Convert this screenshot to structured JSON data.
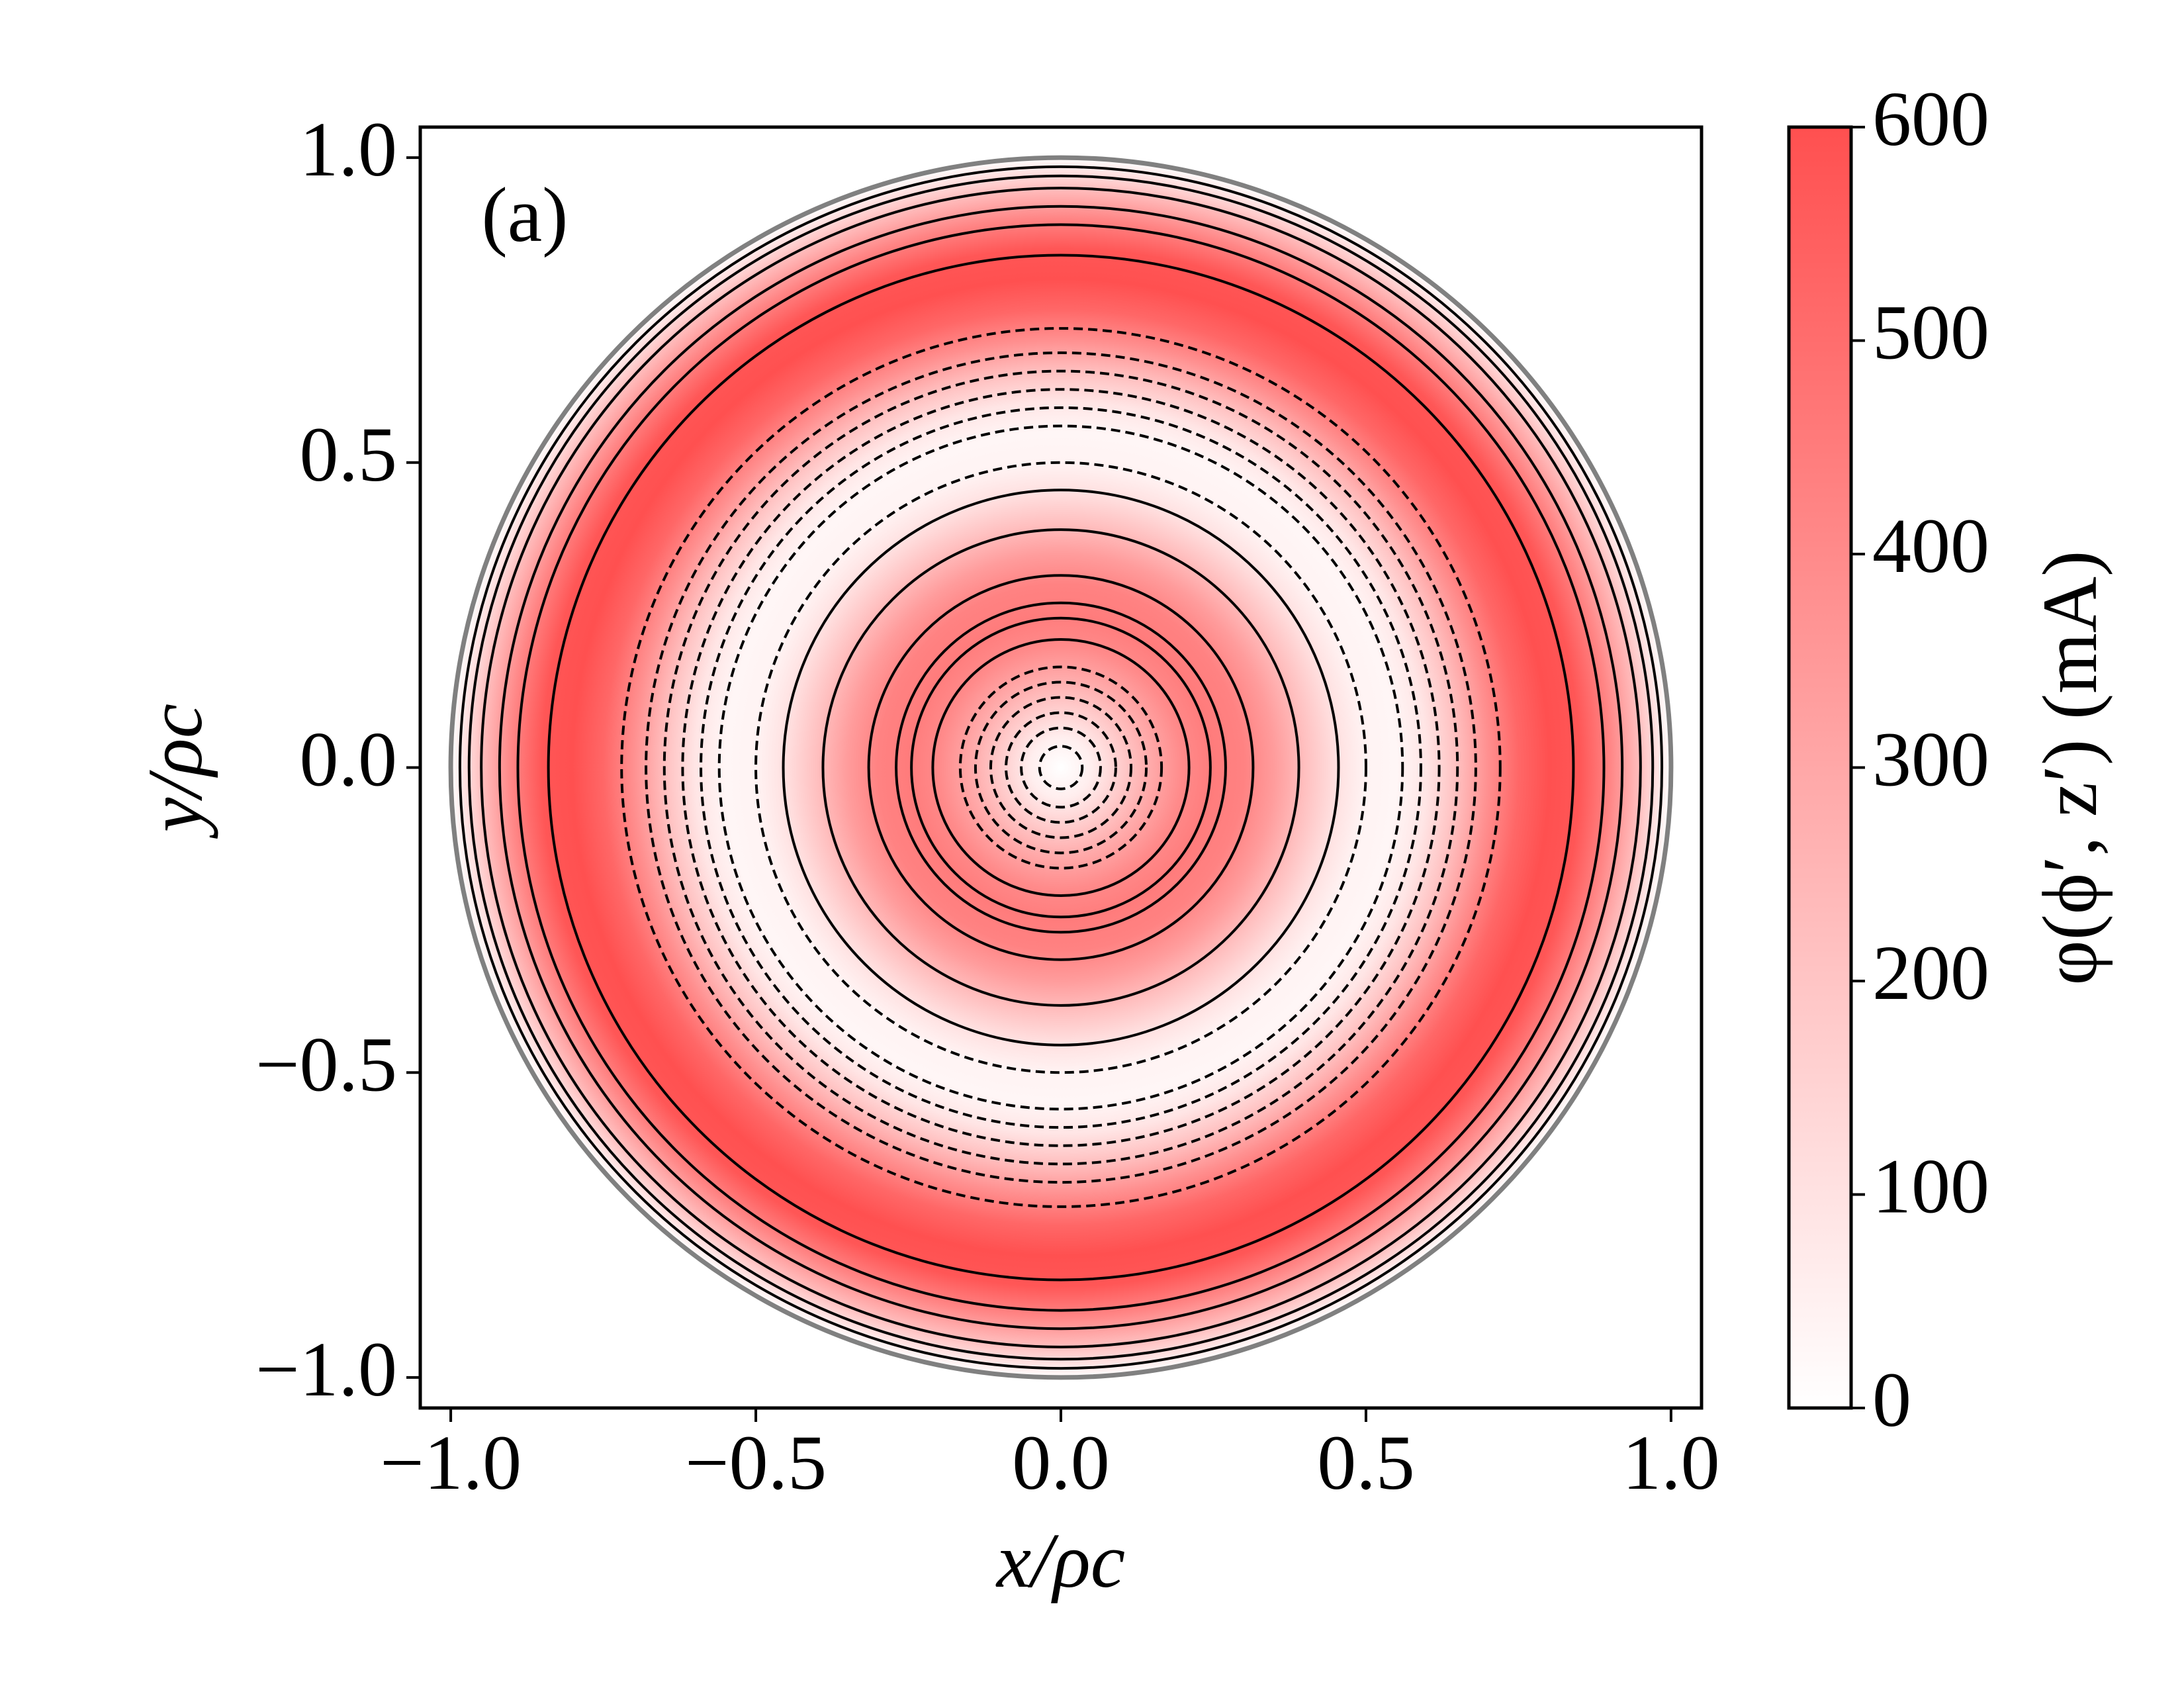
{
  "chart_data": {
    "type": "contour",
    "annotation": "(a)",
    "xlabel": "x/ρc",
    "ylabel": "y/ρc",
    "colorbar_label": "φ(ϕ′, z′) (mA)",
    "xlim": [
      -1.05,
      1.05
    ],
    "ylim": [
      -1.05,
      1.05
    ],
    "xticks": [
      {
        "value": -1,
        "label": "−1.0"
      },
      {
        "value": -0.5,
        "label": "−0.5"
      },
      {
        "value": 0,
        "label": "0.0"
      },
      {
        "value": 0.5,
        "label": "0.5"
      },
      {
        "value": 1,
        "label": "1.0"
      }
    ],
    "yticks": [
      {
        "value": -1,
        "label": "−1.0"
      },
      {
        "value": -0.5,
        "label": "−0.5"
      },
      {
        "value": 0,
        "label": "0.0"
      },
      {
        "value": 0.5,
        "label": "0.5"
      },
      {
        "value": 1,
        "label": "1.0"
      }
    ],
    "clim": [
      0,
      600
    ],
    "cticks": [
      0,
      100,
      200,
      300,
      400,
      500,
      600
    ],
    "cmap": [
      "#ffffff",
      "#ff5050"
    ],
    "profile": {
      "r": [
        0,
        0.05,
        0.1,
        0.15,
        0.2,
        0.25,
        0.3,
        0.35,
        0.4,
        0.45,
        0.5,
        0.55,
        0.6,
        0.65,
        0.7,
        0.75,
        0.8,
        0.85,
        0.9,
        0.95,
        1.0
      ],
      "values": [
        0,
        60,
        180,
        300,
        400,
        450,
        430,
        340,
        220,
        110,
        40,
        30,
        90,
        220,
        380,
        520,
        600,
        580,
        420,
        220,
        0
      ]
    },
    "contours": [
      {
        "style": "dashed",
        "radii": [
          0.035,
          0.065,
          0.09,
          0.115,
          0.14,
          0.165
        ]
      },
      {
        "style": "solid",
        "radii": [
          0.21,
          0.245,
          0.27,
          0.315,
          0.39,
          0.455
        ]
      },
      {
        "style": "dashed",
        "radii": [
          0.5,
          0.56,
          0.59,
          0.62,
          0.65,
          0.68,
          0.72
        ]
      },
      {
        "style": "solid",
        "radii": [
          0.84,
          0.89,
          0.92,
          0.95,
          0.97,
          0.985
        ]
      }
    ]
  }
}
